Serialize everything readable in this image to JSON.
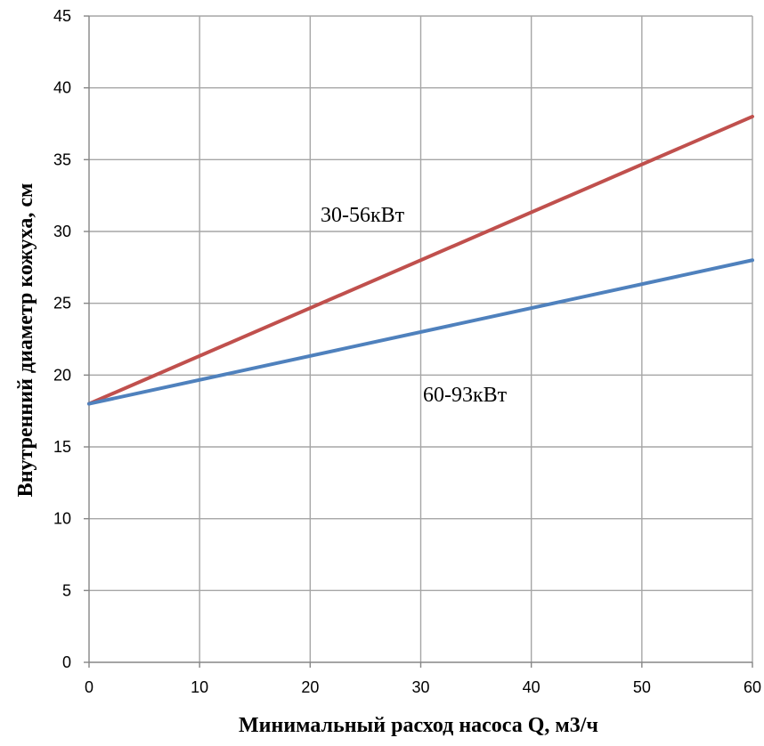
{
  "chart_data": {
    "type": "line",
    "title": "",
    "xlabel": "Минимальный расход насоса Q, м3/ч",
    "ylabel": "Внутренний диаметр кожуха, см",
    "xlim": [
      0,
      60
    ],
    "ylim": [
      0,
      45
    ],
    "x_ticks": [
      "0",
      "10",
      "20",
      "30",
      "40",
      "50",
      "60"
    ],
    "y_ticks": [
      "0",
      "5",
      "10",
      "15",
      "20",
      "25",
      "30",
      "35",
      "40",
      "45"
    ],
    "grid": true,
    "legend": "none",
    "series": [
      {
        "name": "30-56кВт",
        "color": "#c0504d",
        "x": [
          0,
          60
        ],
        "y": [
          18,
          38
        ]
      },
      {
        "name": "60-93кВт",
        "color": "#4f81bd",
        "x": [
          0,
          60
        ],
        "y": [
          18,
          28
        ]
      }
    ]
  }
}
